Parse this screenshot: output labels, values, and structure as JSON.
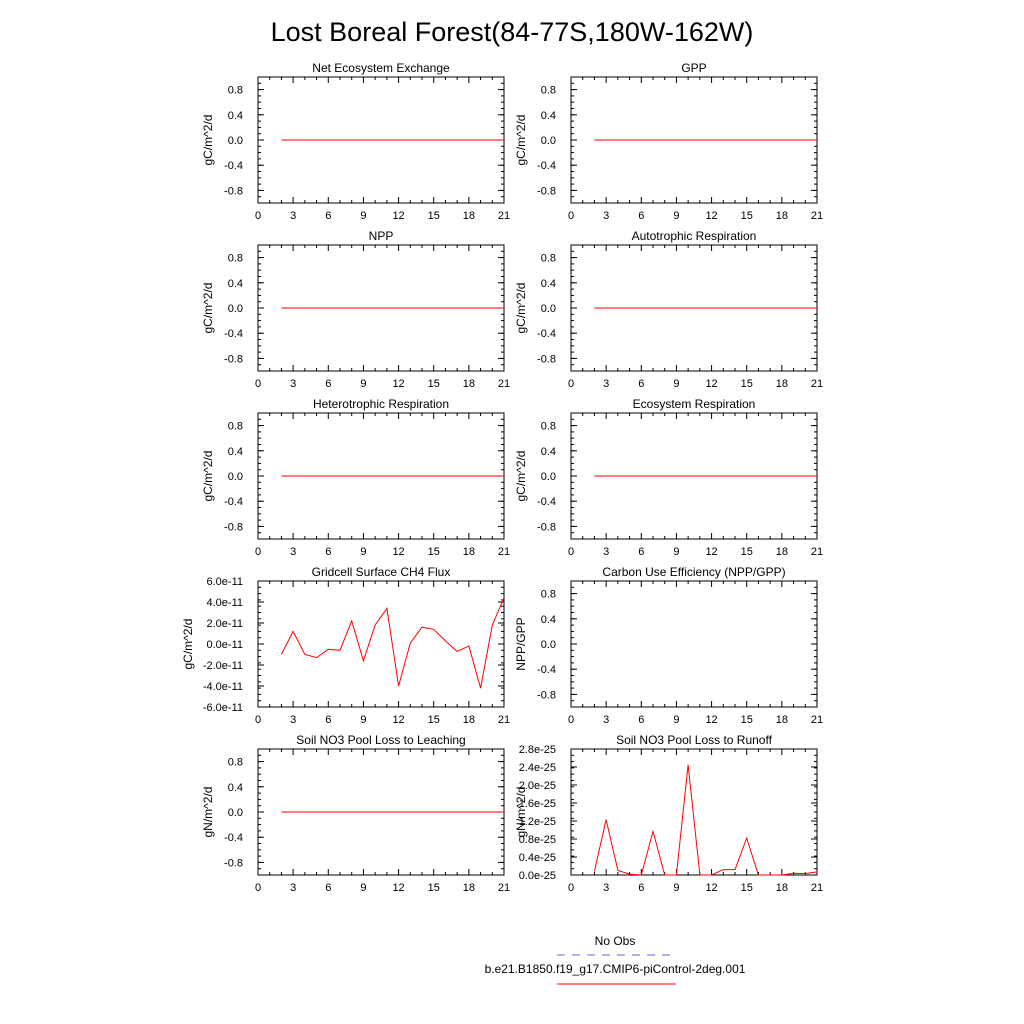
{
  "page_title": "Lost Boreal Forest(84-77S,180W-162W)",
  "colors": {
    "series": "#ff0000",
    "obs": "#6666cc",
    "axis": "#000000"
  },
  "legend": {
    "obs_label": "No Obs",
    "model_label": "b.e21.B1850.f19_g17.CMIP6-piControl-2deg.001"
  },
  "chart_data": [
    {
      "type": "line",
      "title": "Net Ecosystem Exchange",
      "ylabel": "gC/m^2/d",
      "xlim": [
        0,
        21
      ],
      "ylim": [
        -1,
        1
      ],
      "xticks": [
        0,
        3,
        6,
        9,
        12,
        15,
        18,
        21
      ],
      "xtick_labels": [
        "0",
        "3",
        "6",
        "9",
        "12",
        "15",
        "18",
        "21"
      ],
      "yticks": [
        0.8,
        0.4,
        0,
        -0.4,
        -0.8
      ],
      "ytick_labels": [
        "0.8",
        "0.4",
        "0.0",
        "-0.4",
        "-0.8"
      ],
      "x": [
        2,
        3,
        4,
        5,
        6,
        7,
        8,
        9,
        10,
        11,
        12,
        13,
        14,
        15,
        16,
        17,
        18,
        19,
        20,
        21
      ],
      "y": [
        0,
        0,
        0,
        0,
        0,
        0,
        0,
        0,
        0,
        0,
        0,
        0,
        0,
        0,
        0,
        0,
        0,
        0,
        0,
        0
      ]
    },
    {
      "type": "line",
      "title": "GPP",
      "ylabel": "gC/m^2/d",
      "xlim": [
        0,
        21
      ],
      "ylim": [
        -1,
        1
      ],
      "xticks": [
        0,
        3,
        6,
        9,
        12,
        15,
        18,
        21
      ],
      "xtick_labels": [
        "0",
        "3",
        "6",
        "9",
        "12",
        "15",
        "18",
        "21"
      ],
      "yticks": [
        0.8,
        0.4,
        0,
        -0.4,
        -0.8
      ],
      "ytick_labels": [
        "0.8",
        "0.4",
        "0.0",
        "-0.4",
        "-0.8"
      ],
      "x": [
        2,
        3,
        4,
        5,
        6,
        7,
        8,
        9,
        10,
        11,
        12,
        13,
        14,
        15,
        16,
        17,
        18,
        19,
        20,
        21
      ],
      "y": [
        0,
        0,
        0,
        0,
        0,
        0,
        0,
        0,
        0,
        0,
        0,
        0,
        0,
        0,
        0,
        0,
        0,
        0,
        0,
        0
      ]
    },
    {
      "type": "line",
      "title": "NPP",
      "ylabel": "gC/m^2/d",
      "xlim": [
        0,
        21
      ],
      "ylim": [
        -1,
        1
      ],
      "xticks": [
        0,
        3,
        6,
        9,
        12,
        15,
        18,
        21
      ],
      "xtick_labels": [
        "0",
        "3",
        "6",
        "9",
        "12",
        "15",
        "18",
        "21"
      ],
      "yticks": [
        0.8,
        0.4,
        0,
        -0.4,
        -0.8
      ],
      "ytick_labels": [
        "0.8",
        "0.4",
        "0.0",
        "-0.4",
        "-0.8"
      ],
      "x": [
        2,
        3,
        4,
        5,
        6,
        7,
        8,
        9,
        10,
        11,
        12,
        13,
        14,
        15,
        16,
        17,
        18,
        19,
        20,
        21
      ],
      "y": [
        0,
        0,
        0,
        0,
        0,
        0,
        0,
        0,
        0,
        0,
        0,
        0,
        0,
        0,
        0,
        0,
        0,
        0,
        0,
        0
      ]
    },
    {
      "type": "line",
      "title": "Autotrophic Respiration",
      "ylabel": "gC/m^2/d",
      "xlim": [
        0,
        21
      ],
      "ylim": [
        -1,
        1
      ],
      "xticks": [
        0,
        3,
        6,
        9,
        12,
        15,
        18,
        21
      ],
      "xtick_labels": [
        "0",
        "3",
        "6",
        "9",
        "12",
        "15",
        "18",
        "21"
      ],
      "yticks": [
        0.8,
        0.4,
        0,
        -0.4,
        -0.8
      ],
      "ytick_labels": [
        "0.8",
        "0.4",
        "0.0",
        "-0.4",
        "-0.8"
      ],
      "x": [
        2,
        3,
        4,
        5,
        6,
        7,
        8,
        9,
        10,
        11,
        12,
        13,
        14,
        15,
        16,
        17,
        18,
        19,
        20,
        21
      ],
      "y": [
        0,
        0,
        0,
        0,
        0,
        0,
        0,
        0,
        0,
        0,
        0,
        0,
        0,
        0,
        0,
        0,
        0,
        0,
        0,
        0
      ]
    },
    {
      "type": "line",
      "title": "Heterotrophic Respiration",
      "ylabel": "gC/m^2/d",
      "xlim": [
        0,
        21
      ],
      "ylim": [
        -1,
        1
      ],
      "xticks": [
        0,
        3,
        6,
        9,
        12,
        15,
        18,
        21
      ],
      "xtick_labels": [
        "0",
        "3",
        "6",
        "9",
        "12",
        "15",
        "18",
        "21"
      ],
      "yticks": [
        0.8,
        0.4,
        0,
        -0.4,
        -0.8
      ],
      "ytick_labels": [
        "0.8",
        "0.4",
        "0.0",
        "-0.4",
        "-0.8"
      ],
      "x": [
        2,
        3,
        4,
        5,
        6,
        7,
        8,
        9,
        10,
        11,
        12,
        13,
        14,
        15,
        16,
        17,
        18,
        19,
        20,
        21
      ],
      "y": [
        0,
        0,
        0,
        0,
        0,
        0,
        0,
        0,
        0,
        0,
        0,
        0,
        0,
        0,
        0,
        0,
        0,
        0,
        0,
        0
      ]
    },
    {
      "type": "line",
      "title": "Ecosystem Respiration",
      "ylabel": "gC/m^2/d",
      "xlim": [
        0,
        21
      ],
      "ylim": [
        -1,
        1
      ],
      "xticks": [
        0,
        3,
        6,
        9,
        12,
        15,
        18,
        21
      ],
      "xtick_labels": [
        "0",
        "3",
        "6",
        "9",
        "12",
        "15",
        "18",
        "21"
      ],
      "yticks": [
        0.8,
        0.4,
        0,
        -0.4,
        -0.8
      ],
      "ytick_labels": [
        "0.8",
        "0.4",
        "0.0",
        "-0.4",
        "-0.8"
      ],
      "x": [
        2,
        3,
        4,
        5,
        6,
        7,
        8,
        9,
        10,
        11,
        12,
        13,
        14,
        15,
        16,
        17,
        18,
        19,
        20,
        21
      ],
      "y": [
        0,
        0,
        0,
        0,
        0,
        0,
        0,
        0,
        0,
        0,
        0,
        0,
        0,
        0,
        0,
        0,
        0,
        0,
        0,
        0
      ]
    },
    {
      "type": "line",
      "title": "Gridcell Surface CH4 Flux",
      "ylabel": "gC/m^2/d",
      "xlim": [
        0,
        21
      ],
      "ylim": [
        -6e-11,
        6e-11
      ],
      "xticks": [
        0,
        3,
        6,
        9,
        12,
        15,
        18,
        21
      ],
      "xtick_labels": [
        "0",
        "3",
        "6",
        "9",
        "12",
        "15",
        "18",
        "21"
      ],
      "yticks": [
        6e-11,
        4e-11,
        2e-11,
        0,
        -2e-11,
        -4e-11,
        -6e-11
      ],
      "ytick_labels": [
        "6.0e-11",
        "4.0e-11",
        "2.0e-11",
        "0.0e-11",
        "-2.0e-11",
        "-4.0e-11",
        "-6.0e-11"
      ],
      "x": [
        2,
        3,
        4,
        5,
        6,
        7,
        8,
        9,
        10,
        11,
        12,
        13,
        14,
        15,
        16,
        17,
        18,
        19,
        20,
        21
      ],
      "y": [
        -1e-11,
        1.2e-11,
        -1e-11,
        -1.3e-11,
        -5e-12,
        -6e-12,
        2.2e-11,
        -1.6e-11,
        1.8e-11,
        3.4e-11,
        -4e-11,
        1e-12,
        1.6e-11,
        1.4e-11,
        3e-12,
        -7e-12,
        -2e-12,
        -4.2e-11,
        1.8e-11,
        4.4e-11
      ]
    },
    {
      "type": "line",
      "title": "Carbon Use Efficiency (NPP/GPP)",
      "ylabel": "NPP/GPP",
      "xlim": [
        0,
        21
      ],
      "ylim": [
        -1,
        1
      ],
      "xticks": [
        0,
        3,
        6,
        9,
        12,
        15,
        18,
        21
      ],
      "xtick_labels": [
        "0",
        "3",
        "6",
        "9",
        "12",
        "15",
        "18",
        "21"
      ],
      "yticks": [
        0.8,
        0.4,
        0,
        -0.4,
        -0.8
      ],
      "ytick_labels": [
        "0.8",
        "0.4",
        "0.0",
        "-0.4",
        "-0.8"
      ],
      "x": [],
      "y": []
    },
    {
      "type": "line",
      "title": "Soil NO3 Pool Loss to Leaching",
      "ylabel": "gN/m^2/d",
      "xlim": [
        0,
        21
      ],
      "ylim": [
        -1,
        1
      ],
      "xticks": [
        0,
        3,
        6,
        9,
        12,
        15,
        18,
        21
      ],
      "xtick_labels": [
        "0",
        "3",
        "6",
        "9",
        "12",
        "15",
        "18",
        "21"
      ],
      "yticks": [
        0.8,
        0.4,
        0,
        -0.4,
        -0.8
      ],
      "ytick_labels": [
        "0.8",
        "0.4",
        "0.0",
        "-0.4",
        "-0.8"
      ],
      "x": [
        2,
        3,
        4,
        5,
        6,
        7,
        8,
        9,
        10,
        11,
        12,
        13,
        14,
        15,
        16,
        17,
        18,
        19,
        20,
        21
      ],
      "y": [
        0,
        0,
        0,
        0,
        0,
        0,
        0,
        0,
        0,
        0,
        0,
        0,
        0,
        0,
        0,
        0,
        0,
        0,
        0,
        0
      ]
    },
    {
      "type": "line",
      "title": "Soil NO3 Pool Loss to Runoff",
      "ylabel": "gN/m^2/d",
      "xlim": [
        0,
        21
      ],
      "ylim": [
        0,
        2.8e-25
      ],
      "xticks": [
        0,
        3,
        6,
        9,
        12,
        15,
        18,
        21
      ],
      "xtick_labels": [
        "0",
        "3",
        "6",
        "9",
        "12",
        "15",
        "18",
        "21"
      ],
      "yticks": [
        2.8e-25,
        2.4e-25,
        2e-25,
        1.6e-25,
        1.2e-25,
        8e-26,
        4e-26,
        0
      ],
      "ytick_labels": [
        "2.8e-25",
        "2.4e-25",
        "2.0e-25",
        "1.6e-25",
        "1.2e-25",
        "0.8e-25",
        "0.4e-25",
        "0.0e-25"
      ],
      "x": [
        2,
        3,
        4,
        5,
        6,
        7,
        8,
        9,
        10,
        11,
        12,
        13,
        14,
        15,
        16,
        17,
        18,
        19,
        20,
        21
      ],
      "y": [
        8e-27,
        1.23e-25,
        1e-26,
        2e-27,
        0.0,
        9.7e-26,
        0.0,
        0.0,
        2.45e-25,
        0.0,
        0.0,
        1.2e-26,
        1.2e-26,
        8.2e-26,
        0.0,
        0.0,
        0.0,
        4e-27,
        3e-27,
        7e-27
      ]
    }
  ]
}
